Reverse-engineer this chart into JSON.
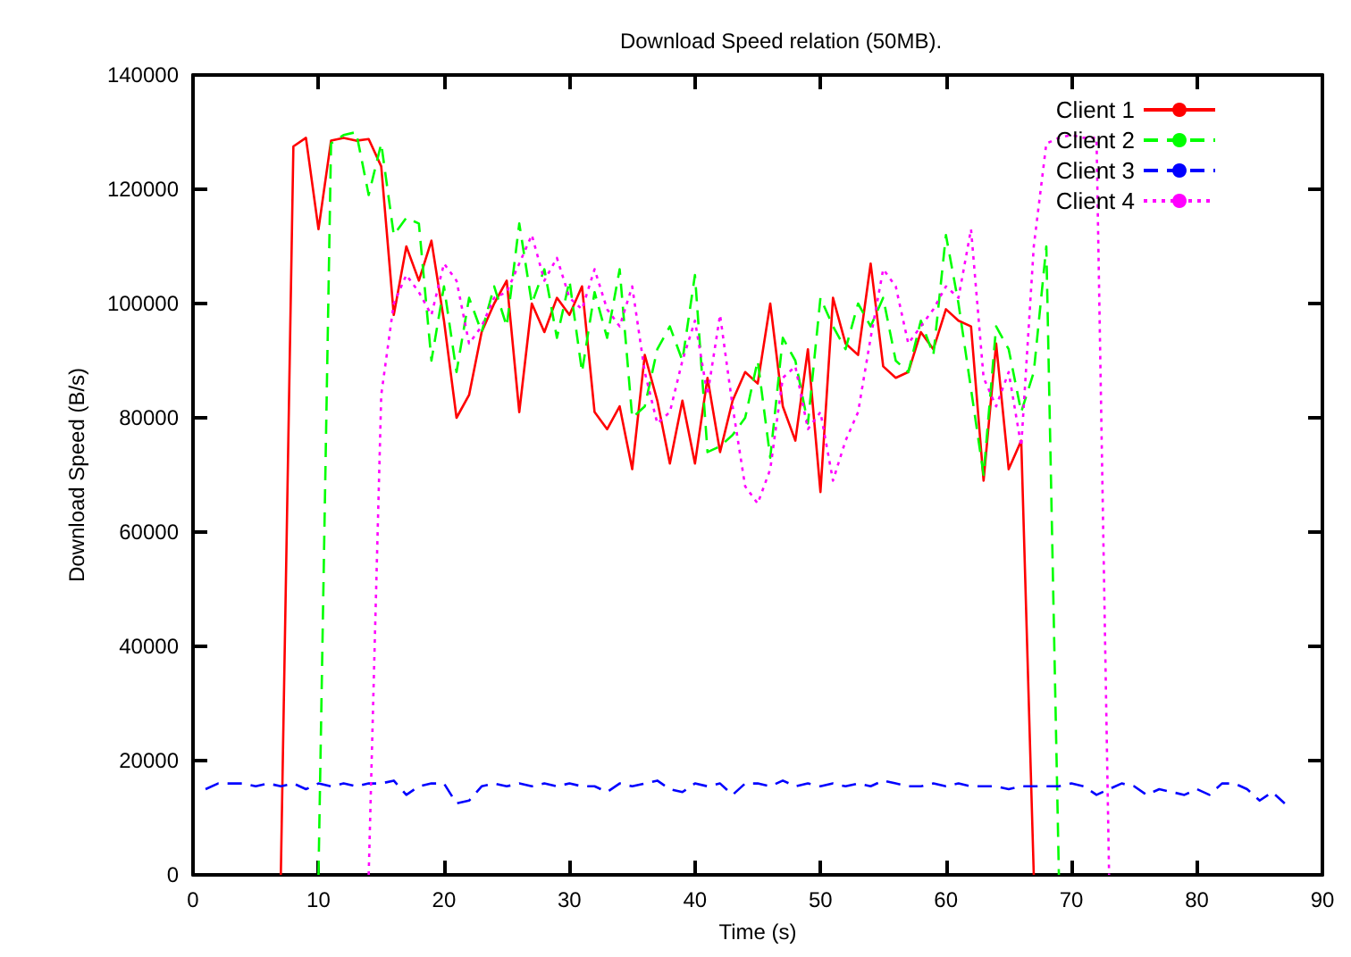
{
  "chart_data": {
    "type": "line",
    "title": "Download Speed relation (50MB).",
    "xlabel": "Time (s)",
    "ylabel": "Download Speed (B/s)",
    "xlim": [
      0,
      90
    ],
    "xticks": [
      0,
      10,
      20,
      30,
      40,
      50,
      60,
      70,
      80,
      90
    ],
    "ylim": [
      0,
      140000
    ],
    "yticks": [
      0,
      20000,
      40000,
      60000,
      80000,
      100000,
      120000,
      140000
    ],
    "grid": false,
    "legend": "top right",
    "marker": "none",
    "series": [
      {
        "name": "Client 1",
        "color": "#ff0000",
        "line_style": "solid",
        "x": [
          7,
          8,
          9,
          10,
          11,
          12,
          13,
          14,
          15,
          16,
          17,
          18,
          19,
          20,
          21,
          22,
          23,
          24,
          25,
          26,
          27,
          28,
          29,
          30,
          31,
          32,
          33,
          34,
          35,
          36,
          37,
          38,
          39,
          40,
          41,
          42,
          43,
          44,
          45,
          46,
          47,
          48,
          49,
          50,
          51,
          52,
          53,
          54,
          55,
          56,
          57,
          58,
          59,
          60,
          61,
          62,
          63,
          64,
          65,
          66,
          67
        ],
        "values": [
          0,
          127500,
          129000,
          113000,
          128500,
          129000,
          128500,
          128800,
          124000,
          98000,
          110000,
          104000,
          111000,
          97000,
          80000,
          84000,
          95000,
          100000,
          104000,
          81000,
          100000,
          95000,
          101000,
          98000,
          103000,
          81000,
          78000,
          82000,
          71000,
          91000,
          83000,
          72000,
          83000,
          72000,
          87000,
          74000,
          83000,
          88000,
          86000,
          100000,
          82000,
          76000,
          92000,
          67000,
          101000,
          93000,
          91000,
          107000,
          89000,
          87000,
          88000,
          95000,
          92000,
          99000,
          97000,
          96000,
          69000,
          93000,
          71000,
          76000,
          0
        ]
      },
      {
        "name": "Client 2",
        "color": "#00ff00",
        "line_style": "dashed",
        "x": [
          10,
          11,
          12,
          13,
          14,
          15,
          16,
          17,
          18,
          19,
          20,
          21,
          22,
          23,
          24,
          25,
          26,
          27,
          28,
          29,
          30,
          31,
          32,
          33,
          34,
          35,
          36,
          37,
          38,
          39,
          40,
          41,
          42,
          43,
          44,
          45,
          46,
          47,
          48,
          49,
          50,
          51,
          52,
          53,
          54,
          55,
          56,
          57,
          58,
          59,
          60,
          61,
          62,
          63,
          64,
          65,
          66,
          67,
          68,
          69
        ],
        "values": [
          0,
          128000,
          129500,
          130000,
          119000,
          128000,
          112000,
          115000,
          114000,
          90000,
          103000,
          88000,
          101000,
          95000,
          103000,
          96000,
          114000,
          100000,
          106000,
          94000,
          104000,
          88000,
          102000,
          94000,
          106000,
          80000,
          82000,
          92000,
          96000,
          90000,
          105000,
          74000,
          75000,
          77000,
          80000,
          90000,
          73000,
          94000,
          90000,
          79000,
          101000,
          96000,
          92000,
          100000,
          96000,
          101000,
          90000,
          88000,
          97000,
          91000,
          112000,
          100000,
          85000,
          70000,
          96000,
          92000,
          81000,
          88000,
          110000,
          0
        ]
      },
      {
        "name": "Client 3",
        "color": "#0000ff",
        "line_style": "dashed",
        "x": [
          1,
          2,
          3,
          4,
          5,
          6,
          7,
          8,
          9,
          10,
          11,
          12,
          13,
          14,
          15,
          16,
          17,
          18,
          19,
          20,
          21,
          22,
          23,
          24,
          25,
          26,
          27,
          28,
          29,
          30,
          31,
          32,
          33,
          34,
          35,
          36,
          37,
          38,
          39,
          40,
          41,
          42,
          43,
          44,
          45,
          46,
          47,
          48,
          49,
          50,
          51,
          52,
          53,
          54,
          55,
          56,
          57,
          58,
          59,
          60,
          61,
          62,
          63,
          64,
          65,
          66,
          67,
          68,
          69,
          70,
          71,
          72,
          73,
          74,
          75,
          76,
          77,
          78,
          79,
          80,
          81,
          82,
          83,
          84,
          85,
          86,
          87
        ],
        "values": [
          15000,
          16000,
          16000,
          16000,
          15500,
          16000,
          15500,
          16000,
          15000,
          16000,
          15500,
          16000,
          15500,
          16000,
          16000,
          16500,
          14000,
          15500,
          16000,
          16000,
          12500,
          13000,
          15500,
          16000,
          15500,
          16000,
          15500,
          16000,
          15500,
          16000,
          15500,
          15500,
          14500,
          16000,
          15500,
          16000,
          16500,
          15000,
          14500,
          16000,
          15500,
          16000,
          14000,
          16000,
          16000,
          15500,
          16500,
          15500,
          16000,
          15500,
          16000,
          15500,
          16000,
          15500,
          16500,
          16000,
          15500,
          15500,
          16000,
          15500,
          16000,
          15500,
          15500,
          15500,
          15000,
          15500,
          15500,
          15500,
          15500,
          16000,
          15500,
          14000,
          15000,
          16000,
          15500,
          14000,
          15000,
          14500,
          14000,
          15000,
          14000,
          16000,
          16000,
          15000,
          13000,
          14500,
          12500
        ]
      },
      {
        "name": "Client 4",
        "color": "#ff00ff",
        "line_style": "dotted",
        "x": [
          14,
          15,
          16,
          17,
          18,
          19,
          20,
          21,
          22,
          23,
          24,
          25,
          26,
          27,
          28,
          29,
          30,
          31,
          32,
          33,
          34,
          35,
          36,
          37,
          38,
          39,
          40,
          41,
          42,
          43,
          44,
          45,
          46,
          47,
          48,
          49,
          50,
          51,
          52,
          53,
          54,
          55,
          56,
          57,
          58,
          59,
          60,
          61,
          62,
          63,
          64,
          65,
          66,
          67,
          68,
          69,
          70,
          71,
          72,
          73
        ],
        "values": [
          0,
          84000,
          100000,
          105000,
          102000,
          98000,
          107000,
          104000,
          93000,
          96000,
          101000,
          102000,
          107000,
          112000,
          104000,
          108000,
          101000,
          99000,
          106000,
          99000,
          96000,
          103000,
          88000,
          79000,
          81000,
          90000,
          97000,
          84000,
          98000,
          82000,
          68000,
          65000,
          71000,
          87000,
          89000,
          78000,
          81000,
          69000,
          76000,
          81000,
          94000,
          106000,
          103000,
          93000,
          96000,
          99000,
          103000,
          101000,
          113000,
          87000,
          82000,
          88000,
          75000,
          110000,
          128000,
          129000,
          129500,
          129000,
          129000,
          0
        ]
      }
    ]
  }
}
